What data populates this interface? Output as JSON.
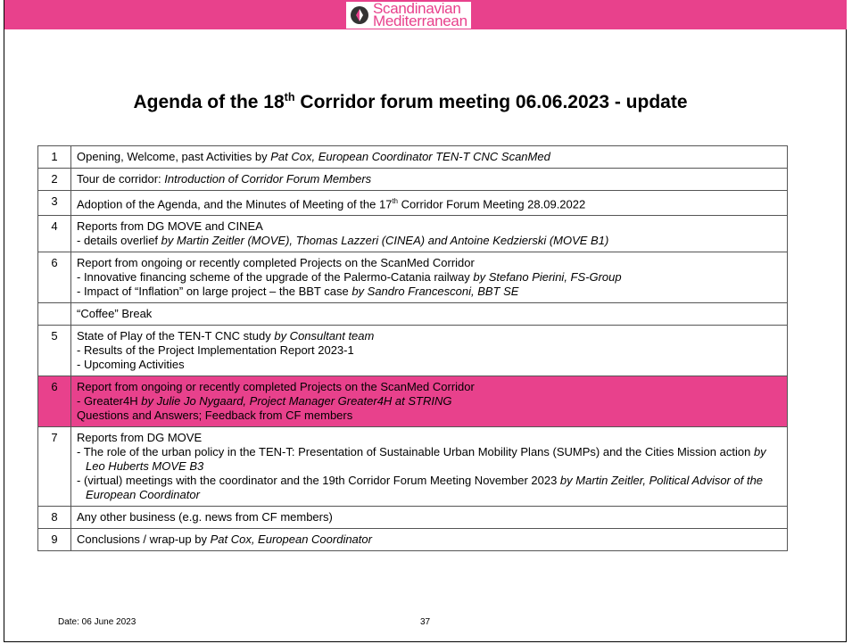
{
  "header": {
    "logo": [
      "Scandinavian",
      "Mediterranean"
    ]
  },
  "title": [
    {
      "t": "Agenda of the 18"
    },
    {
      "t": "th",
      "s": "sup"
    },
    {
      "t": " Corridor forum meeting 06.06.2023 - update"
    }
  ],
  "table": {
    "rows": [
      {
        "num": "1",
        "lines": [
          [
            {
              "t": "Opening, Welcome, past Activities by "
            },
            {
              "t": "Pat Cox, European Coordinator TEN-T CNC ScanMed",
              "s": "i"
            }
          ]
        ]
      },
      {
        "num": "2",
        "lines": [
          [
            {
              "t": "Tour de corridor: "
            },
            {
              "t": "Introduction of Corridor Forum Members",
              "s": "i"
            }
          ]
        ]
      },
      {
        "num": "3",
        "lines": [
          [
            {
              "t": "Adoption of the Agenda, and the Minutes of Meeting of the 17"
            },
            {
              "t": "th",
              "s": "sup"
            },
            {
              "t": " Corridor Forum Meeting 28.09.2022"
            }
          ]
        ]
      },
      {
        "num": "4",
        "lines": [
          [
            {
              "t": "Reports from DG MOVE and CINEA"
            }
          ],
          [
            {
              "t": "- details overlief "
            },
            {
              "t": "by Martin Zeitler (MOVE), Thomas Lazzeri (CINEA) and Antoine Kedzierski (MOVE B1)",
              "s": "i"
            }
          ]
        ]
      },
      {
        "num": "6",
        "lines": [
          [
            {
              "t": "Report from ongoing or recently completed Projects on the ScanMed Corridor"
            }
          ],
          [
            {
              "t": "- Innovative financing scheme of the upgrade of the Palermo-Catania railway "
            },
            {
              "t": "by Stefano Pierini, FS-Group",
              "s": "i"
            }
          ],
          [
            {
              "t": "- Impact of “Inflation” on large project – the BBT case "
            },
            {
              "t": "by Sandro Francesconi, BBT SE",
              "s": "i"
            }
          ]
        ]
      },
      {
        "num": null,
        "lines": [
          [
            {
              "t": "“Coffee” Break"
            }
          ]
        ]
      },
      {
        "num": "5",
        "lines": [
          [
            {
              "t": "State of Play of the TEN-T CNC study "
            },
            {
              "t": "by Consultant team",
              "s": "i"
            }
          ],
          [
            {
              "t": "- Results of the Project Implementation Report 2023-1"
            }
          ],
          [
            {
              "t": "- Upcoming Activities"
            }
          ]
        ]
      },
      {
        "num": "6",
        "highlight": true,
        "lines": [
          [
            {
              "t": "Report from ongoing or recently completed Projects on the ScanMed Corridor"
            }
          ],
          [
            {
              "t": "- Greater4H "
            },
            {
              "t": "by Julie Jo Nygaard, Project Manager Greater4H at STRING",
              "s": "i"
            }
          ],
          [
            {
              "t": "Questions and Answers; Feedback from CF members"
            }
          ]
        ]
      },
      {
        "num": "7",
        "lines": [
          [
            {
              "t": "Reports from DG MOVE"
            }
          ],
          [
            {
              "t": "- The role of the urban policy in the TEN-T: Presentation of Sustainable Urban Mobility Plans (SUMPs) and the Cities Mission action "
            },
            {
              "t": "by Leo Huberts MOVE B3",
              "s": "i"
            }
          ],
          [
            {
              "t": "- (virtual) meetings with the coordinator and the 19th Corridor Forum Meeting November 2023 "
            },
            {
              "t": "by Martin Zeitler, Political Advisor of the European Coordinator",
              "s": "i"
            }
          ]
        ]
      },
      {
        "num": "8",
        "lines": [
          [
            {
              "t": "Any other business (e.g. news from CF members)"
            }
          ]
        ]
      },
      {
        "num": "9",
        "lines": [
          [
            {
              "t": "Conclusions / wrap-up by "
            },
            {
              "t": "Pat Cox, European Coordinator",
              "s": "i"
            }
          ]
        ]
      }
    ]
  },
  "footer": {
    "date": "Date: 06 June 2023",
    "page": "37"
  }
}
